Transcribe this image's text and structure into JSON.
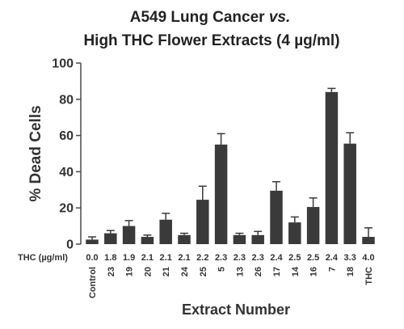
{
  "chart_data": {
    "type": "bar",
    "title_line1": "A549 Lung Cancer ",
    "title_line1_italic": "vs.",
    "title_line2": "High THC Flower Extracts (4 µg/ml)",
    "ylabel": "% Dead Cells",
    "xlabel": "Extract Number",
    "ylim": [
      0,
      100
    ],
    "yticks": [
      "0",
      "20",
      "40",
      "60",
      "80",
      "100"
    ],
    "thc_row_label": "THC (µg/ml)",
    "categories": [
      "Control",
      "23",
      "19",
      "20",
      "21",
      "24",
      "25",
      "5",
      "13",
      "26",
      "17",
      "14",
      "16",
      "7",
      "18",
      "THC"
    ],
    "thc_values": [
      "0.0",
      "1.8",
      "1.9",
      "2.1",
      "2.1",
      "2.1",
      "2.2",
      "2.3",
      "2.3",
      "2.3",
      "2.4",
      "2.5",
      "2.5",
      "2.4",
      "3.3",
      "4.0"
    ],
    "values": [
      2.5,
      6,
      10,
      4,
      13.5,
      5,
      24.5,
      55,
      5,
      5,
      29.5,
      12,
      20.5,
      84,
      55.5,
      4
    ],
    "errors": [
      1.5,
      1.5,
      3,
      1,
      3.5,
      1,
      7.5,
      6,
      1,
      2,
      5,
      3,
      5,
      2,
      6,
      5
    ],
    "bar_color": "#3a3a3a",
    "axis_color": "#4a4a4a",
    "grid": false
  }
}
